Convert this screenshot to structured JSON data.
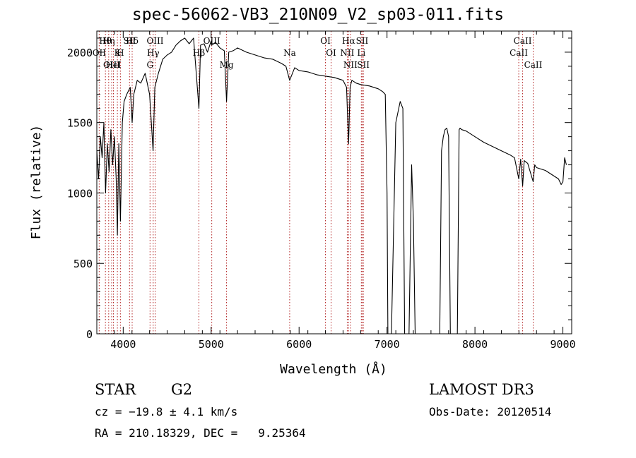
{
  "header": {
    "title": "spec-56062-VB3_210N09_V2_sp03-011.fits"
  },
  "footer": {
    "class_label": "STAR",
    "subclass": "G2",
    "survey": "LAMOST DR3",
    "cz": "cz = −19.8 ± 4.1 km/s",
    "obs_date": "Obs-Date: 20120514",
    "coords": "RA = 210.18329, DEC =   9.25364"
  },
  "chart_data": {
    "type": "line",
    "title": "spec-56062-VB3_210N09_V2_sp03-011.fits",
    "xlabel": "Wavelength (Å)",
    "ylabel": "Flux (relative)",
    "xlim": [
      3700,
      9100
    ],
    "ylim": [
      0,
      2150
    ],
    "xticks": [
      4000,
      5000,
      6000,
      7000,
      8000,
      9000
    ],
    "yticks": [
      0,
      500,
      1000,
      1500,
      2000
    ],
    "grid": false,
    "line_color": "#000000",
    "marker_color": "#b22222",
    "series": [
      {
        "name": "flux",
        "x": [
          3700,
          3720,
          3740,
          3760,
          3780,
          3800,
          3820,
          3840,
          3860,
          3880,
          3900,
          3920,
          3934,
          3950,
          3968,
          3990,
          4010,
          4040,
          4080,
          4102,
          4120,
          4160,
          4200,
          4250,
          4300,
          4340,
          4360,
          4400,
          4450,
          4500,
          4550,
          4600,
          4650,
          4700,
          4750,
          4800,
          4861,
          4880,
          4920,
          4958,
          5000,
          5007,
          5050,
          5100,
          5150,
          5175,
          5200,
          5250,
          5300,
          5400,
          5500,
          5600,
          5700,
          5800,
          5850,
          5893,
          5950,
          6000,
          6100,
          6200,
          6300,
          6400,
          6500,
          6540,
          6563,
          6580,
          6600,
          6650,
          6700,
          6800,
          6850,
          6900,
          6950,
          6980,
          7000,
          7010,
          7050,
          7100,
          7150,
          7180,
          7200,
          7250,
          7280,
          7300,
          7320,
          7350,
          7550,
          7600,
          7620,
          7640,
          7660,
          7680,
          7700,
          7720,
          7760,
          7800,
          7820,
          7830,
          7850,
          7900,
          7950,
          8000,
          8100,
          8200,
          8300,
          8400,
          8450,
          8498,
          8520,
          8542,
          8560,
          8600,
          8662,
          8680,
          8700,
          8800,
          8850,
          8900,
          8950,
          8980,
          9000,
          9020,
          9040
        ],
        "y": [
          1300,
          1100,
          1400,
          1250,
          1500,
          1000,
          1350,
          1150,
          1450,
          1200,
          1400,
          1100,
          700,
          1350,
          800,
          1500,
          1650,
          1700,
          1750,
          1500,
          1700,
          1800,
          1780,
          1850,
          1700,
          1300,
          1750,
          1850,
          1950,
          1980,
          2000,
          2050,
          2080,
          2100,
          2060,
          2100,
          1600,
          2050,
          2060,
          2000,
          2080,
          2050,
          2070,
          2030,
          2010,
          1650,
          2000,
          2010,
          2030,
          2000,
          1980,
          1960,
          1950,
          1920,
          1900,
          1800,
          1890,
          1870,
          1860,
          1840,
          1830,
          1820,
          1800,
          1750,
          1350,
          1750,
          1800,
          1780,
          1770,
          1760,
          1750,
          1740,
          1720,
          1700,
          1000,
          0,
          0,
          1500,
          1650,
          1600,
          0,
          0,
          1200,
          800,
          0,
          0,
          0,
          0,
          1300,
          1400,
          1450,
          1460,
          1400,
          0,
          0,
          0,
          1450,
          1460,
          1450,
          1440,
          1420,
          1400,
          1360,
          1330,
          1300,
          1270,
          1250,
          1100,
          1240,
          1050,
          1230,
          1210,
          1080,
          1200,
          1180,
          1160,
          1140,
          1120,
          1100,
          1060,
          1080,
          1250,
          1200
        ]
      }
    ],
    "lines": [
      {
        "name": "Hθ",
        "x": 3798
      },
      {
        "name": "OII",
        "x": 3727
      },
      {
        "name": "OIII",
        "x": 3869
      },
      {
        "name": "Hη",
        "x": 3835
      },
      {
        "name": "K",
        "x": 3934
      },
      {
        "name": "HeI",
        "x": 3889
      },
      {
        "name": "H",
        "x": 3968
      },
      {
        "name": "SII",
        "x": 4072
      },
      {
        "name": "Hδ",
        "x": 4102
      },
      {
        "name": "OIII",
        "x": 4363
      },
      {
        "name": "Hγ",
        "x": 4341
      },
      {
        "name": "G",
        "x": 4305
      },
      {
        "name": "OIII",
        "x": 5007
      },
      {
        "name": "Mg",
        "x": 5175
      },
      {
        "name": "Hβ",
        "x": 4861
      },
      {
        "name": "Na",
        "x": 5893
      },
      {
        "name": "OI",
        "x": 6300
      },
      {
        "name": "OI",
        "x": 6364
      },
      {
        "name": "Hα",
        "x": 6563
      },
      {
        "name": "NII",
        "x": 6548
      },
      {
        "name": "NII",
        "x": 6584
      },
      {
        "name": "SII",
        "x": 6717
      },
      {
        "name": "Li",
        "x": 6708
      },
      {
        "name": "SII",
        "x": 6731
      },
      {
        "name": "CaII",
        "x": 8542
      },
      {
        "name": "CaII",
        "x": 8498
      },
      {
        "name": "CaII",
        "x": 8662
      }
    ]
  }
}
